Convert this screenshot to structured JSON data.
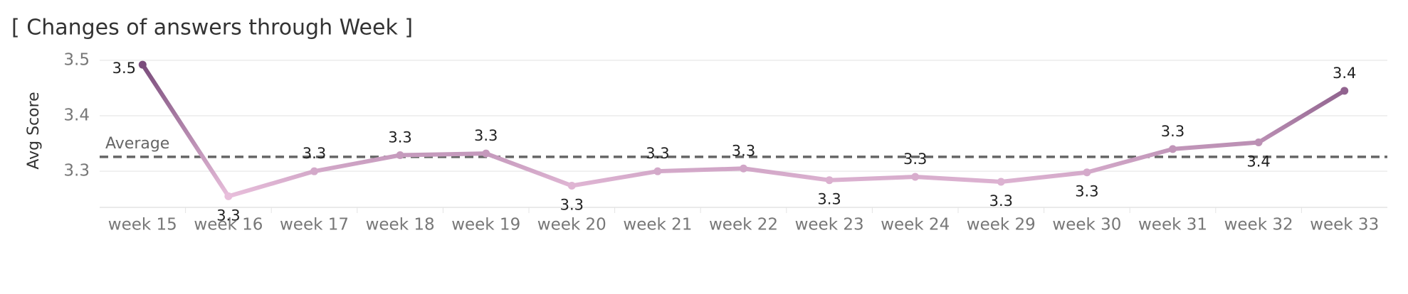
{
  "chart_data": {
    "type": "line",
    "title": "[ Changes of answers through Week ]",
    "y_label": "Avg Score",
    "categories": [
      "week 15",
      "week 16",
      "week 17",
      "week 18",
      "week 19",
      "week 20",
      "week 21",
      "week 22",
      "week 23",
      "week 24",
      "week 29",
      "week 30",
      "week 31",
      "week 32",
      "week 33"
    ],
    "values": [
      3.492,
      3.255,
      3.3,
      3.329,
      3.332,
      3.274,
      3.3,
      3.305,
      3.284,
      3.29,
      3.281,
      3.298,
      3.34,
      3.352,
      3.445
    ],
    "value_labels": [
      "3.5",
      "3.3",
      "3.3",
      "3.3",
      "3.3",
      "3.3",
      "3.3",
      "3.3",
      "3.3",
      "3.3",
      "3.3",
      "3.3",
      "3.3",
      "3.4",
      "3.4"
    ],
    "color_range": [
      "#e8bedb",
      "#7b4d7c"
    ],
    "reference_line": {
      "label": "Average",
      "value": 3.326,
      "color": "#666666"
    },
    "ylim": [
      3.235,
      3.51
    ],
    "yticks": [
      3.3,
      3.4,
      3.5
    ],
    "grid": true
  }
}
